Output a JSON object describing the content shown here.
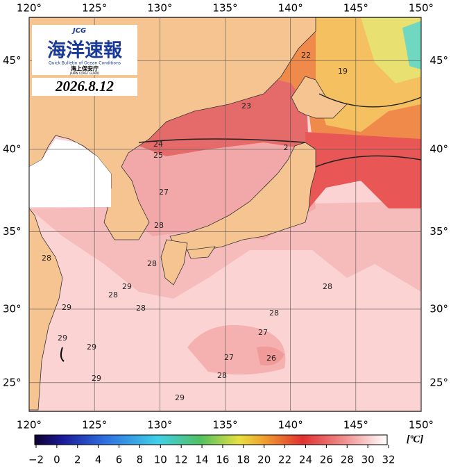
{
  "chart_data": {
    "type": "map",
    "logo": {
      "badge": "JCG",
      "title": "海洋速報",
      "subtitle": "Quick Bulletin of Ocean Conditions",
      "agency": "海上保安庁",
      "agency_en": "JAPAN COAST GUARD"
    },
    "date": "2026.8.12",
    "xlim": [
      120,
      150
    ],
    "ylim": [
      23,
      47.3
    ],
    "xticks": [
      {
        "value": 120,
        "label": "120°"
      },
      {
        "value": 125,
        "label": "125°"
      },
      {
        "value": 130,
        "label": "130°"
      },
      {
        "value": 135,
        "label": "135°"
      },
      {
        "value": 140,
        "label": "140°"
      },
      {
        "value": 145,
        "label": "145°"
      },
      {
        "value": 150,
        "label": "150°"
      }
    ],
    "yticks": [
      {
        "value": 25,
        "label": "25°"
      },
      {
        "value": 30,
        "label": "30°"
      },
      {
        "value": 35,
        "label": "35°"
      },
      {
        "value": 40,
        "label": "40°"
      },
      {
        "value": 45,
        "label": "45°"
      }
    ],
    "grid": true,
    "contour_labels": [
      "23",
      "24",
      "25",
      "2",
      "19",
      "22",
      "27",
      "28",
      "28",
      "28",
      "29",
      "28",
      "28",
      "29",
      "29",
      "29",
      "29",
      "29",
      "28",
      "27",
      "26",
      "27",
      "28",
      "28"
    ],
    "colorbar": {
      "unit": "[ºC]",
      "clim": [
        -2,
        32
      ],
      "ticks": [
        {
          "value": -2,
          "label": "−2"
        },
        0,
        2,
        4,
        6,
        8,
        10,
        12,
        14,
        16,
        18,
        20,
        22,
        24,
        26,
        28,
        30,
        32
      ]
    }
  }
}
